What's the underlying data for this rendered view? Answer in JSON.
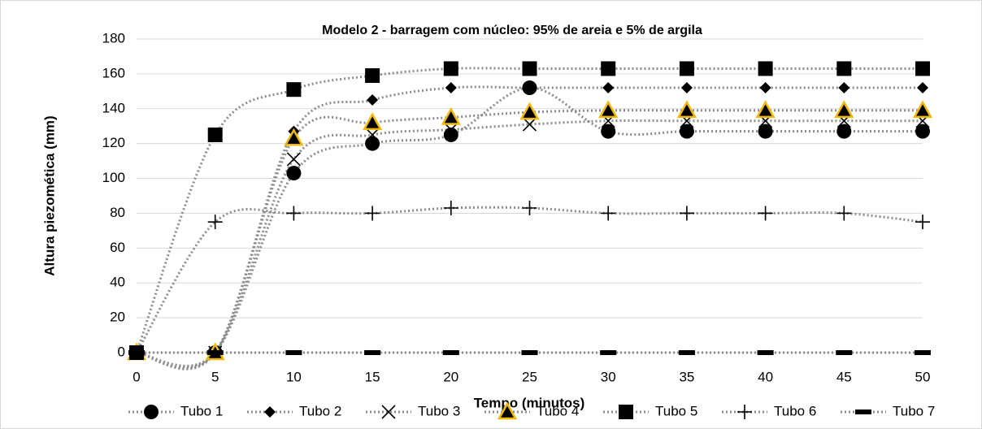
{
  "chart_data": {
    "type": "line",
    "title": "Modelo 2 - barragem com núcleo: 95% de areia e 5% de argila",
    "x_label": "Tempo (minutos)",
    "y_label": "Altura piezomética (mm)",
    "x": [
      0,
      5,
      10,
      15,
      20,
      25,
      30,
      35,
      40,
      45,
      50
    ],
    "xlim": [
      0,
      50
    ],
    "xticks": [
      0,
      5,
      10,
      15,
      20,
      25,
      30,
      35,
      40,
      45,
      50
    ],
    "ylim": [
      0,
      180
    ],
    "yticks": [
      0,
      20,
      40,
      60,
      80,
      100,
      120,
      140,
      160,
      180
    ],
    "grid": true,
    "legend": "bottom",
    "line_color": "#8c8c8c",
    "series": [
      {
        "name": "Tubo 1",
        "marker": "circle",
        "color": "#000000",
        "values": [
          0,
          0,
          103,
          120,
          125,
          152,
          127,
          127,
          127,
          127,
          127
        ]
      },
      {
        "name": "Tubo 2",
        "marker": "diamond",
        "color": "#000000",
        "values": [
          0,
          0,
          127,
          145,
          152,
          152,
          152,
          152,
          152,
          152,
          152
        ]
      },
      {
        "name": "Tubo 3",
        "marker": "x",
        "color": "#000000",
        "values": [
          0,
          0,
          111,
          125,
          128,
          131,
          133,
          133,
          133,
          133,
          133
        ]
      },
      {
        "name": "Tubo 4",
        "marker": "triangle",
        "color": "#f2b800",
        "values": [
          0,
          0,
          123,
          132,
          135,
          138,
          139,
          139,
          139,
          139,
          139
        ]
      },
      {
        "name": "Tubo 5",
        "marker": "square",
        "color": "#000000",
        "values": [
          0,
          125,
          151,
          159,
          163,
          163,
          163,
          163,
          163,
          163,
          163
        ]
      },
      {
        "name": "Tubo 6",
        "marker": "plus",
        "color": "#000000",
        "values": [
          0,
          75,
          80,
          80,
          83,
          83,
          80,
          80,
          80,
          80,
          75
        ]
      },
      {
        "name": "Tubo 7",
        "marker": "dash",
        "color": "#000000",
        "values": [
          0,
          0,
          0,
          0,
          0,
          0,
          0,
          0,
          0,
          0,
          0
        ]
      }
    ]
  }
}
